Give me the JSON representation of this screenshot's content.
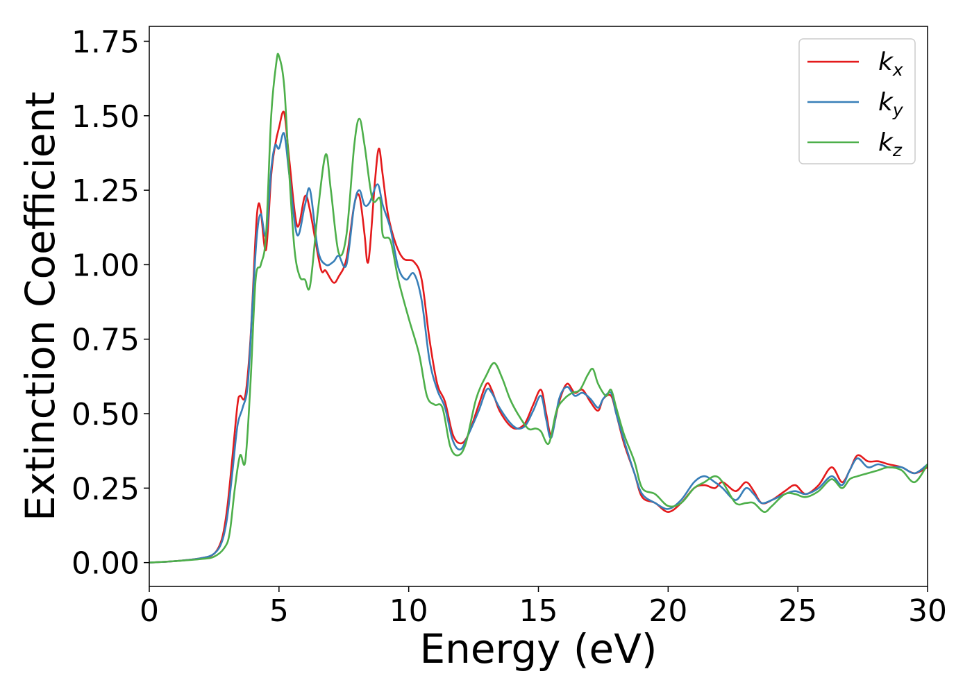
{
  "chart_data": {
    "type": "line",
    "title": "",
    "xlabel": "Energy (eV)",
    "ylabel": "Extinction Coefficient",
    "xlim": [
      0,
      30
    ],
    "ylim": [
      -0.08,
      1.8
    ],
    "xticks": [
      0,
      5,
      10,
      15,
      20,
      25,
      30
    ],
    "xtick_labels": [
      "0",
      "5",
      "10",
      "15",
      "20",
      "25",
      "30"
    ],
    "yticks": [
      0.0,
      0.25,
      0.5,
      0.75,
      1.0,
      1.25,
      1.5,
      1.75
    ],
    "ytick_labels": [
      "0.00",
      "0.25",
      "0.50",
      "0.75",
      "1.00",
      "1.25",
      "1.50",
      "1.75"
    ],
    "grid": false,
    "legend_position": "top-right",
    "series": [
      {
        "name": "k_x",
        "legend_base": "k",
        "legend_sub": "x",
        "color": "#e41a1c",
        "points": [
          [
            0,
            0
          ],
          [
            1,
            0.005
          ],
          [
            2,
            0.015
          ],
          [
            2.5,
            0.03
          ],
          [
            2.8,
            0.08
          ],
          [
            3.0,
            0.18
          ],
          [
            3.2,
            0.35
          ],
          [
            3.4,
            0.53
          ],
          [
            3.5,
            0.56
          ],
          [
            3.7,
            0.56
          ],
          [
            3.9,
            0.75
          ],
          [
            4.1,
            1.1
          ],
          [
            4.2,
            1.2
          ],
          [
            4.3,
            1.18
          ],
          [
            4.5,
            1.05
          ],
          [
            4.7,
            1.3
          ],
          [
            4.85,
            1.4
          ],
          [
            5.0,
            1.46
          ],
          [
            5.2,
            1.51
          ],
          [
            5.4,
            1.35
          ],
          [
            5.7,
            1.13
          ],
          [
            6.0,
            1.23
          ],
          [
            6.2,
            1.18
          ],
          [
            6.6,
            0.99
          ],
          [
            6.8,
            0.98
          ],
          [
            7.1,
            0.94
          ],
          [
            7.3,
            0.96
          ],
          [
            7.6,
            1.02
          ],
          [
            7.9,
            1.2
          ],
          [
            8.1,
            1.23
          ],
          [
            8.3,
            1.1
          ],
          [
            8.4,
            1.01
          ],
          [
            8.5,
            1.05
          ],
          [
            8.7,
            1.28
          ],
          [
            8.85,
            1.39
          ],
          [
            9.0,
            1.3
          ],
          [
            9.2,
            1.17
          ],
          [
            9.5,
            1.07
          ],
          [
            9.8,
            1.02
          ],
          [
            10.2,
            1.01
          ],
          [
            10.5,
            0.95
          ],
          [
            10.8,
            0.75
          ],
          [
            11.1,
            0.6
          ],
          [
            11.4,
            0.54
          ],
          [
            11.7,
            0.43
          ],
          [
            12.0,
            0.4
          ],
          [
            12.3,
            0.43
          ],
          [
            12.7,
            0.53
          ],
          [
            13.0,
            0.6
          ],
          [
            13.2,
            0.58
          ],
          [
            13.5,
            0.51
          ],
          [
            13.9,
            0.46
          ],
          [
            14.2,
            0.45
          ],
          [
            14.5,
            0.47
          ],
          [
            14.8,
            0.53
          ],
          [
            15.1,
            0.58
          ],
          [
            15.3,
            0.5
          ],
          [
            15.5,
            0.43
          ],
          [
            15.8,
            0.54
          ],
          [
            16.1,
            0.6
          ],
          [
            16.4,
            0.57
          ],
          [
            16.7,
            0.58
          ],
          [
            17.0,
            0.54
          ],
          [
            17.3,
            0.51
          ],
          [
            17.5,
            0.55
          ],
          [
            17.8,
            0.56
          ],
          [
            18.0,
            0.5
          ],
          [
            18.3,
            0.4
          ],
          [
            18.7,
            0.3
          ],
          [
            19.0,
            0.22
          ],
          [
            19.5,
            0.2
          ],
          [
            20.0,
            0.17
          ],
          [
            20.5,
            0.2
          ],
          [
            21.0,
            0.25
          ],
          [
            21.4,
            0.26
          ],
          [
            21.8,
            0.25
          ],
          [
            22.1,
            0.27
          ],
          [
            22.6,
            0.24
          ],
          [
            23.0,
            0.27
          ],
          [
            23.3,
            0.24
          ],
          [
            23.6,
            0.2
          ],
          [
            24.0,
            0.21
          ],
          [
            24.5,
            0.24
          ],
          [
            24.9,
            0.26
          ],
          [
            25.3,
            0.23
          ],
          [
            25.8,
            0.26
          ],
          [
            26.3,
            0.32
          ],
          [
            26.7,
            0.27
          ],
          [
            27.0,
            0.31
          ],
          [
            27.3,
            0.36
          ],
          [
            27.7,
            0.34
          ],
          [
            28.1,
            0.34
          ],
          [
            28.5,
            0.33
          ],
          [
            29.0,
            0.32
          ],
          [
            29.5,
            0.3
          ],
          [
            30.0,
            0.32
          ]
        ]
      },
      {
        "name": "k_y",
        "legend_base": "k",
        "legend_sub": "y",
        "color": "#377eb8",
        "points": [
          [
            0,
            0
          ],
          [
            1,
            0.005
          ],
          [
            2,
            0.015
          ],
          [
            2.5,
            0.03
          ],
          [
            2.8,
            0.07
          ],
          [
            3.0,
            0.15
          ],
          [
            3.2,
            0.3
          ],
          [
            3.4,
            0.46
          ],
          [
            3.6,
            0.52
          ],
          [
            3.8,
            0.6
          ],
          [
            4.0,
            0.9
          ],
          [
            4.15,
            1.1
          ],
          [
            4.3,
            1.17
          ],
          [
            4.5,
            1.1
          ],
          [
            4.7,
            1.32
          ],
          [
            4.85,
            1.4
          ],
          [
            5.0,
            1.39
          ],
          [
            5.2,
            1.44
          ],
          [
            5.4,
            1.3
          ],
          [
            5.7,
            1.1
          ],
          [
            6.0,
            1.2
          ],
          [
            6.2,
            1.25
          ],
          [
            6.5,
            1.05
          ],
          [
            6.8,
            1.0
          ],
          [
            7.1,
            1.01
          ],
          [
            7.3,
            1.03
          ],
          [
            7.6,
            1.0
          ],
          [
            7.9,
            1.2
          ],
          [
            8.1,
            1.25
          ],
          [
            8.3,
            1.2
          ],
          [
            8.5,
            1.21
          ],
          [
            8.8,
            1.27
          ],
          [
            9.0,
            1.2
          ],
          [
            9.3,
            1.12
          ],
          [
            9.6,
            0.99
          ],
          [
            9.9,
            0.95
          ],
          [
            10.2,
            0.97
          ],
          [
            10.5,
            0.88
          ],
          [
            10.8,
            0.68
          ],
          [
            11.1,
            0.58
          ],
          [
            11.4,
            0.52
          ],
          [
            11.7,
            0.41
          ],
          [
            12.0,
            0.38
          ],
          [
            12.3,
            0.43
          ],
          [
            12.7,
            0.51
          ],
          [
            13.0,
            0.58
          ],
          [
            13.2,
            0.57
          ],
          [
            13.5,
            0.52
          ],
          [
            13.9,
            0.47
          ],
          [
            14.2,
            0.45
          ],
          [
            14.5,
            0.46
          ],
          [
            14.8,
            0.51
          ],
          [
            15.1,
            0.56
          ],
          [
            15.3,
            0.48
          ],
          [
            15.5,
            0.42
          ],
          [
            15.8,
            0.55
          ],
          [
            16.1,
            0.59
          ],
          [
            16.4,
            0.56
          ],
          [
            16.7,
            0.57
          ],
          [
            17.0,
            0.55
          ],
          [
            17.3,
            0.52
          ],
          [
            17.5,
            0.55
          ],
          [
            17.8,
            0.57
          ],
          [
            18.0,
            0.5
          ],
          [
            18.3,
            0.41
          ],
          [
            18.7,
            0.3
          ],
          [
            19.0,
            0.23
          ],
          [
            19.5,
            0.2
          ],
          [
            20.0,
            0.18
          ],
          [
            20.5,
            0.21
          ],
          [
            21.0,
            0.27
          ],
          [
            21.4,
            0.29
          ],
          [
            21.8,
            0.27
          ],
          [
            22.1,
            0.25
          ],
          [
            22.6,
            0.21
          ],
          [
            23.0,
            0.25
          ],
          [
            23.3,
            0.23
          ],
          [
            23.6,
            0.2
          ],
          [
            24.0,
            0.21
          ],
          [
            24.5,
            0.23
          ],
          [
            24.9,
            0.24
          ],
          [
            25.3,
            0.23
          ],
          [
            25.8,
            0.25
          ],
          [
            26.3,
            0.29
          ],
          [
            26.7,
            0.26
          ],
          [
            27.0,
            0.31
          ],
          [
            27.3,
            0.35
          ],
          [
            27.7,
            0.32
          ],
          [
            28.1,
            0.33
          ],
          [
            28.5,
            0.32
          ],
          [
            29.0,
            0.32
          ],
          [
            29.5,
            0.3
          ],
          [
            30.0,
            0.33
          ]
        ]
      },
      {
        "name": "k_z",
        "legend_base": "k",
        "legend_sub": "z",
        "color": "#4daf4a",
        "points": [
          [
            0,
            0
          ],
          [
            1,
            0.005
          ],
          [
            2,
            0.012
          ],
          [
            2.5,
            0.02
          ],
          [
            2.9,
            0.05
          ],
          [
            3.1,
            0.1
          ],
          [
            3.3,
            0.25
          ],
          [
            3.5,
            0.36
          ],
          [
            3.7,
            0.34
          ],
          [
            3.9,
            0.6
          ],
          [
            4.1,
            0.95
          ],
          [
            4.3,
            1.0
          ],
          [
            4.5,
            1.1
          ],
          [
            4.7,
            1.5
          ],
          [
            4.9,
            1.68
          ],
          [
            5.0,
            1.7
          ],
          [
            5.2,
            1.6
          ],
          [
            5.4,
            1.3
          ],
          [
            5.6,
            1.05
          ],
          [
            5.8,
            0.96
          ],
          [
            6.0,
            0.95
          ],
          [
            6.2,
            0.93
          ],
          [
            6.5,
            1.18
          ],
          [
            6.8,
            1.37
          ],
          [
            7.0,
            1.25
          ],
          [
            7.3,
            1.04
          ],
          [
            7.6,
            1.1
          ],
          [
            7.9,
            1.4
          ],
          [
            8.1,
            1.49
          ],
          [
            8.3,
            1.4
          ],
          [
            8.6,
            1.22
          ],
          [
            8.9,
            1.22
          ],
          [
            9.0,
            1.1
          ],
          [
            9.3,
            1.08
          ],
          [
            9.6,
            0.95
          ],
          [
            10.0,
            0.82
          ],
          [
            10.4,
            0.7
          ],
          [
            10.7,
            0.56
          ],
          [
            11.0,
            0.53
          ],
          [
            11.3,
            0.52
          ],
          [
            11.6,
            0.39
          ],
          [
            11.9,
            0.36
          ],
          [
            12.2,
            0.4
          ],
          [
            12.6,
            0.55
          ],
          [
            13.0,
            0.63
          ],
          [
            13.3,
            0.67
          ],
          [
            13.6,
            0.62
          ],
          [
            13.9,
            0.55
          ],
          [
            14.2,
            0.5
          ],
          [
            14.6,
            0.45
          ],
          [
            14.9,
            0.45
          ],
          [
            15.1,
            0.44
          ],
          [
            15.4,
            0.4
          ],
          [
            15.7,
            0.51
          ],
          [
            16.0,
            0.55
          ],
          [
            16.3,
            0.57
          ],
          [
            16.6,
            0.58
          ],
          [
            16.9,
            0.63
          ],
          [
            17.1,
            0.65
          ],
          [
            17.3,
            0.6
          ],
          [
            17.6,
            0.56
          ],
          [
            17.8,
            0.58
          ],
          [
            18.0,
            0.52
          ],
          [
            18.3,
            0.43
          ],
          [
            18.7,
            0.34
          ],
          [
            19.0,
            0.25
          ],
          [
            19.5,
            0.23
          ],
          [
            20.0,
            0.19
          ],
          [
            20.5,
            0.2
          ],
          [
            21.0,
            0.25
          ],
          [
            21.4,
            0.27
          ],
          [
            21.8,
            0.29
          ],
          [
            22.1,
            0.27
          ],
          [
            22.6,
            0.2
          ],
          [
            23.0,
            0.2
          ],
          [
            23.3,
            0.2
          ],
          [
            23.7,
            0.17
          ],
          [
            24.0,
            0.19
          ],
          [
            24.5,
            0.23
          ],
          [
            24.9,
            0.23
          ],
          [
            25.3,
            0.22
          ],
          [
            25.8,
            0.24
          ],
          [
            26.3,
            0.28
          ],
          [
            26.7,
            0.25
          ],
          [
            27.0,
            0.28
          ],
          [
            27.3,
            0.29
          ],
          [
            27.7,
            0.3
          ],
          [
            28.1,
            0.31
          ],
          [
            28.5,
            0.32
          ],
          [
            29.0,
            0.31
          ],
          [
            29.5,
            0.27
          ],
          [
            30.0,
            0.33
          ]
        ]
      }
    ]
  }
}
